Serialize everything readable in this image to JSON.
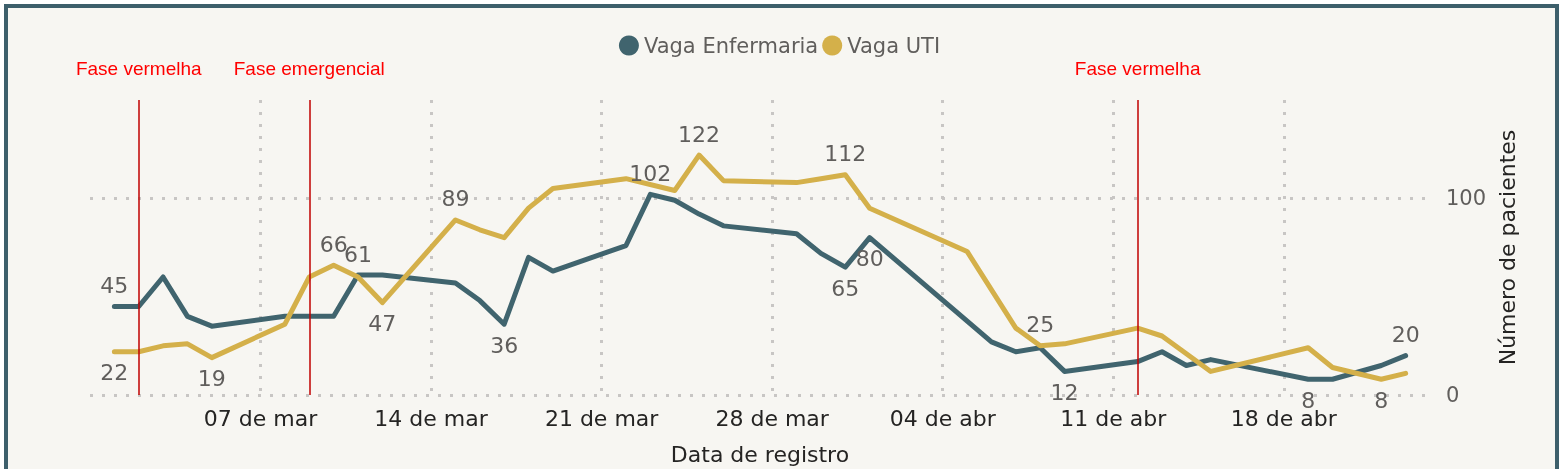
{
  "chart_data": {
    "type": "line",
    "xlabel": "Data de registro",
    "ylabel": "Número de pacientes",
    "series": [
      {
        "name": "Vaga Enfermaria",
        "color": "#40646e",
        "x": [
          "--03-01",
          "--03-02",
          "--03-03",
          "--03-04",
          "--03-05",
          "--03-08",
          "--03-10",
          "--03-11",
          "--03-12",
          "--03-15",
          "--03-16",
          "--03-17",
          "--03-18",
          "--03-19",
          "--03-22",
          "--03-23",
          "--03-24",
          "--03-25",
          "--03-26",
          "--03-29",
          "--03-30",
          "--03-31",
          "--04-01",
          "--04-06",
          "--04-07",
          "--04-08",
          "--04-09",
          "--04-12",
          "--04-13",
          "--04-14",
          "--04-15",
          "--04-19",
          "--04-20",
          "--04-22",
          "--04-23"
        ],
        "values": [
          45,
          45,
          60,
          40,
          35,
          40,
          40,
          61,
          61,
          57,
          48,
          36,
          70,
          63,
          76,
          102,
          99,
          92,
          86,
          82,
          72,
          65,
          80,
          27,
          22,
          24,
          12,
          17,
          22,
          15,
          18,
          8,
          8,
          15,
          20
        ],
        "value_labels": [
          "45",
          null,
          null,
          null,
          null,
          null,
          null,
          "61",
          null,
          null,
          null,
          "36",
          null,
          null,
          null,
          "102",
          null,
          null,
          null,
          null,
          null,
          "65",
          "80",
          null,
          null,
          null,
          "12",
          null,
          null,
          null,
          null,
          "8",
          null,
          null,
          "20"
        ]
      },
      {
        "name": "Vaga UTI",
        "color": "#d4b04a",
        "x": [
          "--03-01",
          "--03-02",
          "--03-03",
          "--03-04",
          "--03-05",
          "--03-08",
          "--03-09",
          "--03-10",
          "--03-11",
          "--03-12",
          "--03-15",
          "--03-16",
          "--03-17",
          "--03-18",
          "--03-19",
          "--03-22",
          "--03-24",
          "--03-25",
          "--03-26",
          "--03-29",
          "--03-30",
          "--03-31",
          "--04-01",
          "--04-05",
          "--04-07",
          "--04-08",
          "--04-09",
          "--04-12",
          "--04-13",
          "--04-15",
          "--04-19",
          "--04-20",
          "--04-22",
          "--04-23"
        ],
        "values": [
          22,
          22,
          25,
          26,
          19,
          36,
          60,
          66,
          60,
          47,
          89,
          84,
          80,
          95,
          105,
          110,
          104,
          122,
          109,
          108,
          110,
          112,
          95,
          73,
          34,
          25,
          26,
          34,
          30,
          12,
          24,
          14,
          8,
          11
        ],
        "value_labels": [
          "22",
          null,
          null,
          null,
          "19",
          null,
          null,
          "66",
          null,
          "47",
          "89",
          null,
          null,
          null,
          null,
          null,
          null,
          "122",
          null,
          null,
          null,
          "112",
          null,
          null,
          null,
          "25",
          null,
          null,
          null,
          null,
          null,
          null,
          "8",
          null
        ]
      }
    ],
    "xlim": [
      "--02-28",
      "--04-24"
    ],
    "xticks": [
      {
        "value": "--03-07",
        "label": "07 de mar"
      },
      {
        "value": "--03-14",
        "label": "14 de mar"
      },
      {
        "value": "--03-21",
        "label": "21 de mar"
      },
      {
        "value": "--03-28",
        "label": "28 de mar"
      },
      {
        "value": "--04-04",
        "label": "04 de abr"
      },
      {
        "value": "--04-11",
        "label": "11 de abr"
      },
      {
        "value": "--04-18",
        "label": "18 de abr"
      }
    ],
    "ylim": [
      0,
      150
    ],
    "yticks": [
      0,
      100
    ],
    "ref_lines": [
      {
        "axis": "x",
        "value": "--03-02",
        "label": "Fase vermelha",
        "color": "#c00000"
      },
      {
        "axis": "x",
        "value": "--03-09",
        "label": "Fase emergencial",
        "color": "#c00000"
      },
      {
        "axis": "x",
        "value": "--04-12",
        "label": "Fase vermelha",
        "color": "#c00000"
      }
    ],
    "grid": true,
    "legend": "top",
    "marker": "none",
    "line_style": "solid"
  }
}
